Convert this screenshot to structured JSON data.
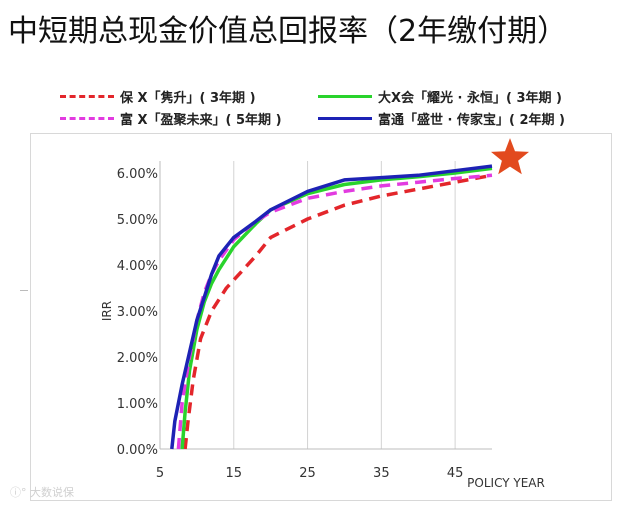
{
  "title": "中短期总现金价值总回报率（2年缴付期）",
  "watermark": "ⓘ° 大数说保",
  "colors": {
    "red": "#e3262b",
    "green": "#29d32c",
    "magenta": "#e23be0",
    "blue": "#1d22b5",
    "star": "#e24a1e",
    "grid": "#d3d3d3"
  },
  "chart_data": {
    "type": "line",
    "xlabel": "POLICY YEAR",
    "ylabel": "IRR",
    "xlim": [
      5,
      50
    ],
    "ylim": [
      0,
      6.0
    ],
    "x_ticks": [
      "5",
      "15",
      "25",
      "35",
      "45"
    ],
    "y_ticks": [
      "0.00%",
      "1.00%",
      "2.00%",
      "3.00%",
      "4.00%",
      "5.00%",
      "6.00%"
    ],
    "grid": "vertical",
    "legend_position": "top",
    "series": [
      {
        "name": "保 X「隽升」( 3年期 )",
        "style": "dashed",
        "color": "#e3262b",
        "x": [
          8.4,
          8.8,
          9.5,
          10.5,
          12,
          14,
          16,
          18,
          20,
          25,
          30,
          35,
          40,
          45,
          50
        ],
        "y": [
          0.0,
          0.6,
          1.5,
          2.4,
          3.0,
          3.5,
          3.85,
          4.2,
          4.6,
          5.0,
          5.3,
          5.5,
          5.65,
          5.8,
          5.95
        ]
      },
      {
        "name": "大X会「耀光 · 永恒」( 3年期 )",
        "style": "solid",
        "color": "#29d32c",
        "x": [
          8.0,
          8.4,
          9.0,
          10.0,
          11.0,
          12.0,
          13.0,
          15.0,
          18.0,
          20.0,
          25.0,
          30.0,
          35.0,
          40.0,
          45.0,
          50.0
        ],
        "y": [
          0.0,
          0.8,
          1.7,
          2.6,
          3.2,
          3.6,
          3.9,
          4.4,
          4.9,
          5.2,
          5.55,
          5.75,
          5.85,
          5.92,
          6.0,
          6.1
        ]
      },
      {
        "name": "富 X「盈聚未来」( 5年期 )",
        "style": "dashed",
        "color": "#e23be0",
        "x": [
          7.5,
          8.0,
          9.0,
          10.0,
          11.0,
          12.0,
          13.0,
          15.0,
          18.0,
          20.0,
          25.0,
          30.0,
          35.0,
          40.0,
          45.0,
          50.0
        ],
        "y": [
          0.0,
          1.0,
          2.0,
          2.8,
          3.4,
          3.8,
          4.1,
          4.55,
          4.95,
          5.15,
          5.45,
          5.6,
          5.72,
          5.8,
          5.88,
          5.95
        ]
      },
      {
        "name": "富通「盛世 · 传家宝」( 2年期 )",
        "style": "solid",
        "color": "#1d22b5",
        "x": [
          6.6,
          7.0,
          8.0,
          9.0,
          10.0,
          11.0,
          12.0,
          13.0,
          15.0,
          18.0,
          20.0,
          25.0,
          30.0,
          35.0,
          40.0,
          45.0,
          50.0
        ],
        "y": [
          0.0,
          0.6,
          1.4,
          2.1,
          2.8,
          3.3,
          3.8,
          4.2,
          4.6,
          4.95,
          5.2,
          5.6,
          5.85,
          5.9,
          5.95,
          6.05,
          6.15
        ]
      }
    ],
    "marker": {
      "shape": "star",
      "x": 50,
      "y": 6.15,
      "color": "#e24a1e"
    }
  }
}
